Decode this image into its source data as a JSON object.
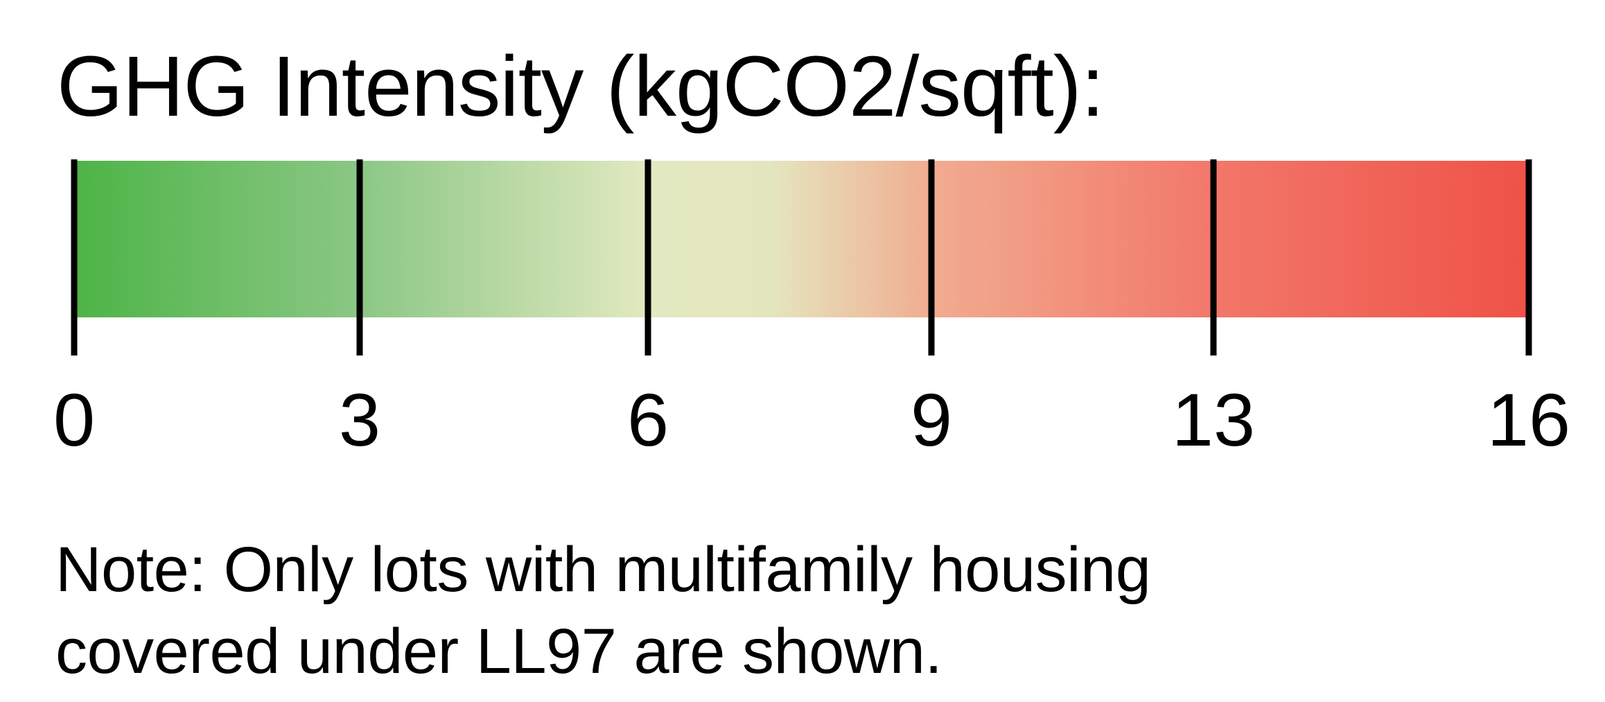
{
  "chart_data": {
    "type": "color-scale-legend",
    "title": "GHG Intensity (kgCO2/sqft):",
    "ticks": [
      {
        "value": 0,
        "label": "0"
      },
      {
        "value": 3,
        "label": "3"
      },
      {
        "value": 6,
        "label": "6"
      },
      {
        "value": 9,
        "label": "9"
      },
      {
        "value": 13,
        "label": "13"
      },
      {
        "value": 16,
        "label": "16"
      }
    ],
    "color_stops": [
      {
        "value": 0,
        "color": "#4db446"
      },
      {
        "value": 3,
        "color": "#8bc785"
      },
      {
        "value": 6,
        "color": "#e2e9c1"
      },
      {
        "value": 7.3,
        "color": "#e4e6bf"
      },
      {
        "value": 9,
        "color": "#f1ac90"
      },
      {
        "value": 13,
        "color": "#f2776a"
      },
      {
        "value": 16,
        "color": "#ef5247"
      }
    ],
    "note_lines": [
      "Note: Only lots with multifamily housing",
      "covered under LL97 are shown."
    ]
  }
}
